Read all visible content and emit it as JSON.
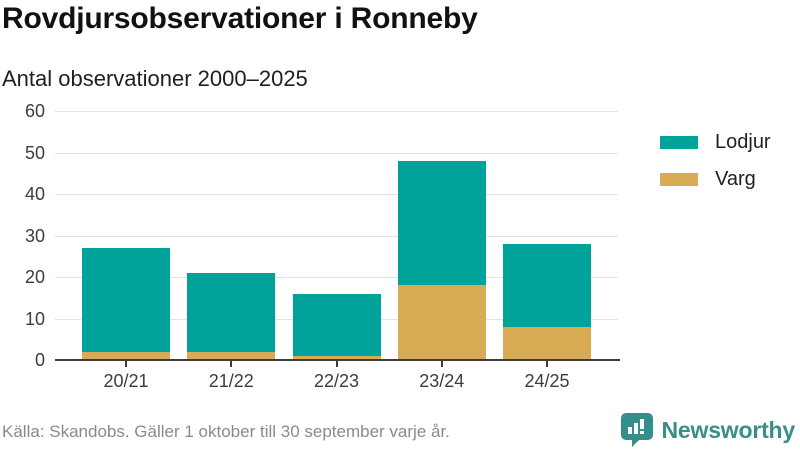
{
  "header": {
    "title": "Rovdjursobservationer i Ronneby",
    "subtitle": "Antal observationer 2000–2025"
  },
  "chart_data": {
    "type": "bar",
    "stacked": true,
    "title": "Rovdjursobservationer i Ronneby",
    "subtitle": "Antal observationer 2000–2025",
    "categories": [
      "20/21",
      "21/22",
      "22/23",
      "23/24",
      "24/25"
    ],
    "series": [
      {
        "name": "Lodjur",
        "color": "#00a39a",
        "values": [
          25,
          19,
          15,
          30,
          20
        ]
      },
      {
        "name": "Varg",
        "color": "#d9ab55",
        "values": [
          2,
          2,
          1,
          18,
          8
        ]
      }
    ],
    "stack_order_bottom_to_top": [
      "Varg",
      "Lodjur"
    ],
    "stacked_totals": [
      27,
      21,
      16,
      48,
      28
    ],
    "ylim": [
      0,
      60
    ],
    "yticks": [
      0,
      10,
      20,
      30,
      40,
      50,
      60
    ],
    "xlabel": "",
    "ylabel": "",
    "grid": "horizontal",
    "legend_position": "right"
  },
  "legend": {
    "items": [
      {
        "label": "Lodjur",
        "color": "#00a39a"
      },
      {
        "label": "Varg",
        "color": "#d9ab55"
      }
    ]
  },
  "footer": {
    "source": "Källa: Skandobs. Gäller 1 oktober till 30 september varje år.",
    "brand": "Newsworthy",
    "brand_color": "#3a8d89"
  },
  "style": {
    "grid_color": "#e2e2e2",
    "axis_color": "#3c3c3c",
    "tick_label_color": "#3d3d3d"
  }
}
